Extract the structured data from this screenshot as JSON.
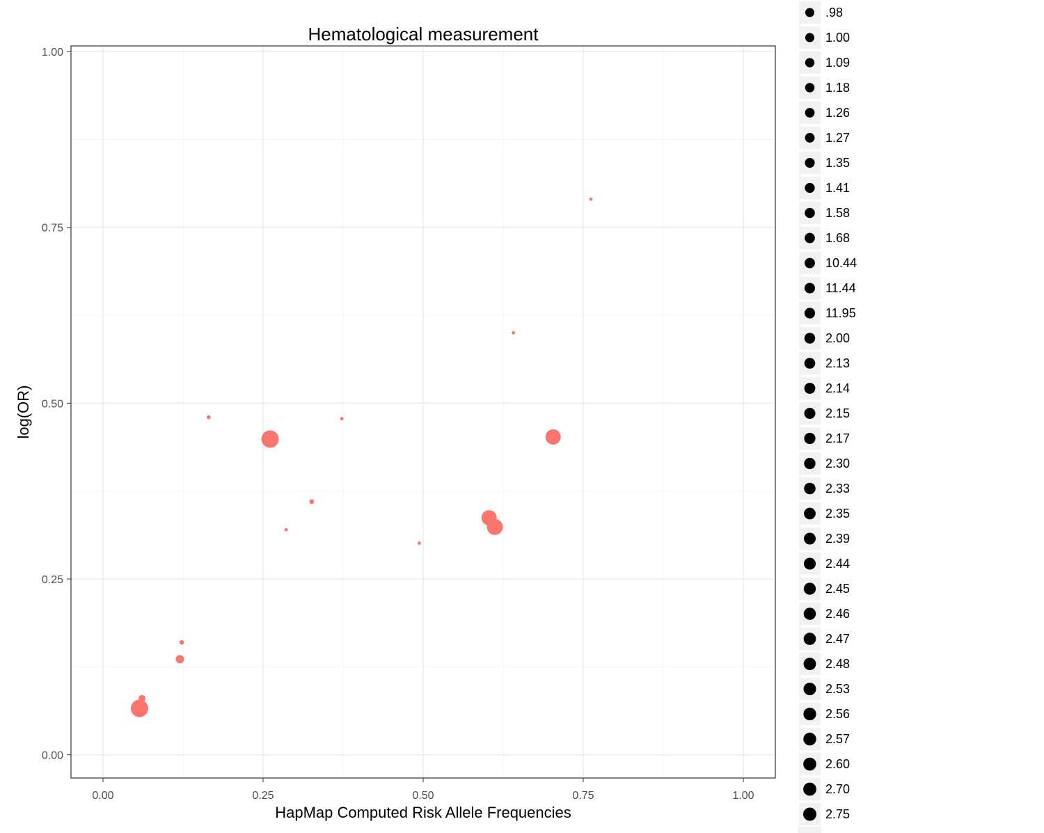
{
  "chart_data": {
    "type": "scatter",
    "title": "Hematological measurement",
    "xlabel": "HapMap Computed Risk Allele Frequencies",
    "ylabel": "log(OR)",
    "xlim": [
      -0.05,
      1.05
    ],
    "ylim": [
      -0.033,
      1.008
    ],
    "x_ticks": [
      0.0,
      0.25,
      0.5,
      0.75,
      1.0
    ],
    "x_tick_labels": [
      "0.00",
      "0.25",
      "0.50",
      "0.75",
      "1.00"
    ],
    "y_ticks": [
      0.0,
      0.25,
      0.5,
      0.75,
      1.0
    ],
    "y_tick_labels": [
      "0.00",
      "0.25",
      "0.50",
      "0.75",
      "1.00"
    ],
    "grid": true,
    "point_color": "#F8766D",
    "points": [
      {
        "x": 0.057,
        "y": 0.066,
        "size": 12.5
      },
      {
        "x": 0.061,
        "y": 0.08,
        "size": 5
      },
      {
        "x": 0.12,
        "y": 0.136,
        "size": 6
      },
      {
        "x": 0.123,
        "y": 0.16,
        "size": 3.2
      },
      {
        "x": 0.165,
        "y": 0.48,
        "size": 2.8
      },
      {
        "x": 0.261,
        "y": 0.449,
        "size": 12.5
      },
      {
        "x": 0.286,
        "y": 0.32,
        "size": 2.4
      },
      {
        "x": 0.326,
        "y": 0.36,
        "size": 3.4
      },
      {
        "x": 0.373,
        "y": 0.478,
        "size": 2.4
      },
      {
        "x": 0.494,
        "y": 0.301,
        "size": 2.4
      },
      {
        "x": 0.603,
        "y": 0.337,
        "size": 11
      },
      {
        "x": 0.612,
        "y": 0.324,
        "size": 11.5
      },
      {
        "x": 0.641,
        "y": 0.6,
        "size": 2.4
      },
      {
        "x": 0.703,
        "y": 0.452,
        "size": 11
      },
      {
        "x": 0.762,
        "y": 0.79,
        "size": 2.4
      }
    ],
    "legend": {
      "placement": "right",
      "key_color": "#000000",
      "entries": [
        ".98",
        "1.00",
        "1.09",
        "1.18",
        "1.26",
        "1.27",
        "1.35",
        "1.41",
        "1.58",
        "1.68",
        "10.44",
        "11.44",
        "11.95",
        "2.00",
        "2.13",
        "2.14",
        "2.15",
        "2.17",
        "2.30",
        "2.33",
        "2.35",
        "2.39",
        "2.44",
        "2.45",
        "2.46",
        "2.47",
        "2.48",
        "2.53",
        "2.56",
        "2.57",
        "2.60",
        "2.70",
        "2.75"
      ]
    }
  }
}
